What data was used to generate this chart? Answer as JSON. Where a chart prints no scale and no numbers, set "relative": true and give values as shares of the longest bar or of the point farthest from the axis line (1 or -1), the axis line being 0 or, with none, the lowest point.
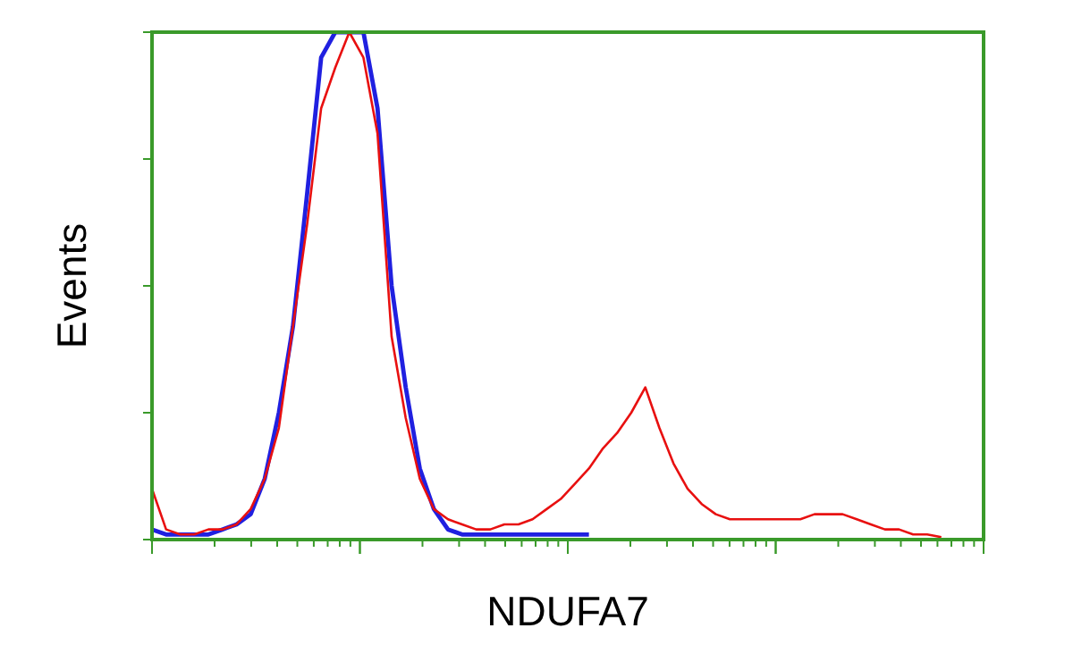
{
  "chart_data": {
    "type": "line",
    "relative": true,
    "xlabel": "NDUFA7",
    "ylabel": "Events",
    "line_style": "solid",
    "categories": [
      null,
      null,
      null,
      null,
      null,
      null,
      null,
      null,
      null,
      null,
      null,
      null,
      null,
      null,
      null,
      null,
      null,
      null,
      null,
      null,
      null,
      null,
      null,
      null,
      null,
      null,
      null,
      null,
      null,
      null,
      null,
      null,
      null,
      null,
      null,
      null,
      null,
      null,
      null,
      null,
      null,
      null,
      null,
      null,
      null,
      null,
      null,
      null,
      null,
      null,
      null,
      null,
      null,
      null,
      null,
      null,
      null,
      null,
      null,
      null
    ],
    "series": [
      {
        "color": "#2020e0",
        "values": [
          0.02,
          0.01,
          0.01,
          0.01,
          0.01,
          0.02,
          0.03,
          0.05,
          0.12,
          0.25,
          0.42,
          0.68,
          0.95,
          1,
          1,
          1,
          0.85,
          0.5,
          0.3,
          0.14,
          0.06,
          0.02,
          0.01,
          0.01,
          0.01,
          0.01,
          0.01,
          0.01,
          0.01,
          0.01,
          0.01,
          0.01,
          null,
          null,
          null,
          null,
          null,
          null,
          null,
          null,
          null,
          null,
          null,
          null,
          null,
          null,
          null,
          null,
          null,
          null,
          null,
          null,
          null,
          null,
          null,
          null,
          null,
          null,
          null,
          null
        ]
      },
      {
        "color": "#e81010",
        "values": [
          0.1,
          0.02,
          0.01,
          0.01,
          0.02,
          0.02,
          0.03,
          0.06,
          0.12,
          0.22,
          0.42,
          0.62,
          0.85,
          0.93,
          1,
          0.95,
          0.8,
          0.4,
          0.24,
          0.12,
          0.06,
          0.04,
          0.03,
          0.02,
          0.02,
          0.03,
          0.03,
          0.04,
          0.06,
          0.08,
          0.11,
          0.14,
          0.18,
          0.21,
          0.25,
          0.3,
          0.22,
          0.15,
          0.1,
          0.07,
          0.05,
          0.04,
          0.04,
          0.04,
          0.04,
          0.04,
          0.04,
          0.05,
          0.05,
          0.05,
          0.04,
          0.03,
          0.02,
          0.02,
          0.01,
          0.01,
          0.005,
          null,
          null,
          null
        ]
      }
    ]
  }
}
